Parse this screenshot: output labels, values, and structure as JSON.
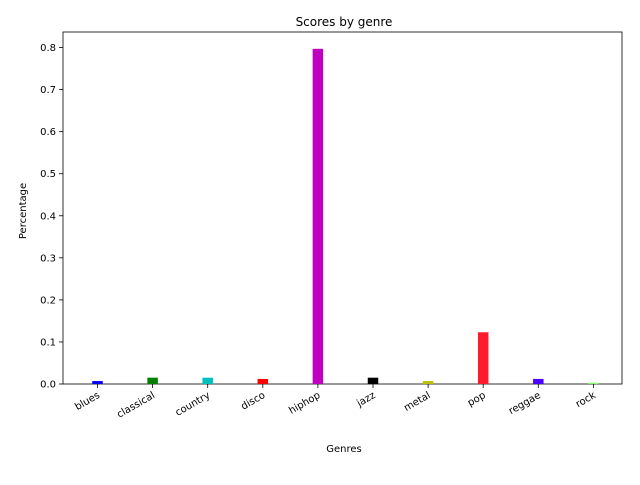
{
  "chart_data": {
    "type": "bar",
    "title": "Scores by genre",
    "xlabel": "Genres",
    "ylabel": "Percentage",
    "categories": [
      "blues",
      "classical",
      "country",
      "disco",
      "hiphop",
      "jazz",
      "metal",
      "pop",
      "reggae",
      "rock"
    ],
    "values": [
      0.007,
      0.015,
      0.015,
      0.012,
      0.797,
      0.015,
      0.007,
      0.123,
      0.012,
      0.003
    ],
    "colors": [
      "#0000ff",
      "#008000",
      "#00bfbf",
      "#ff0000",
      "#bf00bf",
      "#000000",
      "#bfbf00",
      "#ff1a2e",
      "#4c00ff",
      "#80ff66"
    ],
    "yticks": [
      "0.0",
      "0.1",
      "0.2",
      "0.3",
      "0.4",
      "0.5",
      "0.6",
      "0.7",
      "0.8"
    ],
    "ylim": [
      0,
      0.837
    ],
    "grid": false,
    "legend": false
  }
}
